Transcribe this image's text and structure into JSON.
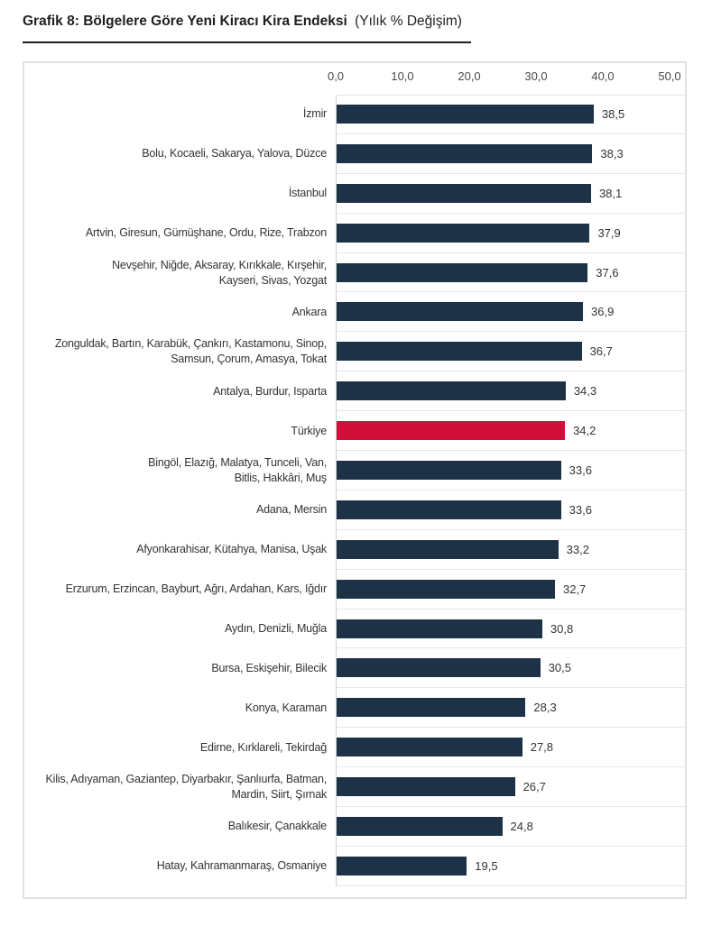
{
  "title": {
    "bold": "Grafik 8: Bölgelere Göre Yeni Kiracı Kira Endeksi",
    "regular": "(Yılık % Değişim)"
  },
  "colors": {
    "bar": "#1e3247",
    "highlight_bar": "#d0103a",
    "row_line": "#e7e7e7",
    "axis_line": "#cfcfcf",
    "card_border": "#e2e2e2",
    "text": "#333333",
    "tick_text": "#4a4a4a",
    "title_text": "#1f1f1f"
  },
  "chart_data": {
    "type": "bar",
    "orientation": "horizontal",
    "title": "Grafik 8: Bölgelere Göre Yeni Kiracı Kira Endeksi (Yılık % Değişim)",
    "xlabel": "",
    "ylabel": "",
    "xlim": [
      0,
      50
    ],
    "x_ticks": [
      "0,0",
      "10,0",
      "20,0",
      "30,0",
      "40,0",
      "50,0"
    ],
    "x_tick_values": [
      0,
      10,
      20,
      30,
      40,
      50
    ],
    "grid": "horizontal row separators only, no vertical gridlines",
    "legend": "none",
    "highlight_category": "Türkiye",
    "categories": [
      "İzmir",
      "Bolu, Kocaeli, Sakarya, Yalova, Düzce",
      "İstanbul",
      "Artvin, Giresun, Gümüşhane, Ordu, Rize, Trabzon",
      "Nevşehir, Niğde, Aksaray, Kırıkkale, Kırşehir,\nKayseri, Sivas, Yozgat",
      "Ankara",
      "Zonguldak, Bartın, Karabük, Çankırı, Kastamonu, Sinop,\nSamsun, Çorum, Amasya, Tokat",
      "Antalya, Burdur, Isparta",
      "Türkiye",
      "Bingöl, Elazığ, Malatya, Tunceli, Van,\nBitlis, Hakkâri, Muş",
      "Adana, Mersin",
      "Afyonkarahisar, Kütahya, Manisa, Uşak",
      "Erzurum, Erzincan, Bayburt, Ağrı, Ardahan, Kars, Iğdır",
      "Aydın, Denizli, Muğla",
      "Bursa, Eskişehir, Bilecik",
      "Konya, Karaman",
      "Edirne, Kırklareli, Tekirdağ",
      "Kilis, Adıyaman, Gaziantep, Diyarbakır, Şanlıurfa, Batman,\nMardin, Siirt, Şırnak",
      "Balıkesir, Çanakkale",
      "Hatay, Kahramanmaraş, Osmaniye"
    ],
    "values": [
      38.5,
      38.3,
      38.1,
      37.9,
      37.6,
      36.9,
      36.7,
      34.3,
      34.2,
      33.6,
      33.6,
      33.2,
      32.7,
      30.8,
      30.5,
      28.3,
      27.8,
      26.7,
      24.8,
      19.5
    ],
    "value_labels": [
      "38,5",
      "38,3",
      "38,1",
      "37,9",
      "37,6",
      "36,9",
      "36,7",
      "34,3",
      "34,2",
      "33,6",
      "33,6",
      "33,2",
      "32,7",
      "30,8",
      "30,5",
      "28,3",
      "27,8",
      "26,7",
      "24,8",
      "19,5"
    ]
  }
}
